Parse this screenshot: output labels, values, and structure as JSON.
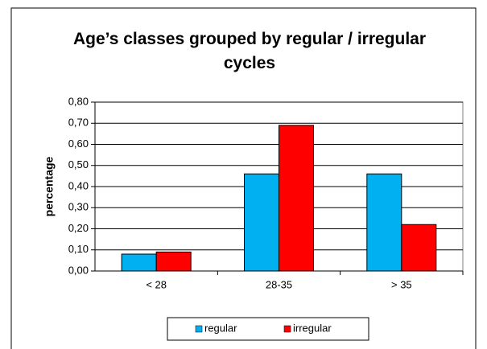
{
  "chart_data": {
    "type": "bar",
    "title": "Age’s classes grouped by regular / irregular cycles",
    "ylabel": "percentage",
    "categories": [
      "< 28",
      "28-35",
      "> 35"
    ],
    "series": [
      {
        "name": "regular",
        "color": "#00b0f0",
        "values": [
          0.08,
          0.46,
          0.46
        ]
      },
      {
        "name": "irregular",
        "color": "#ff0000",
        "values": [
          0.09,
          0.69,
          0.22
        ]
      }
    ],
    "ylim": [
      0,
      0.8
    ],
    "yticks": [
      {
        "value": 0,
        "label": "0,00"
      },
      {
        "value": 0.1,
        "label": "0,10"
      },
      {
        "value": 0.2,
        "label": "0,20"
      },
      {
        "value": 0.3,
        "label": "0,30"
      },
      {
        "value": 0.4,
        "label": "0,40"
      },
      {
        "value": 0.5,
        "label": "0,50"
      },
      {
        "value": 0.6,
        "label": "0,60"
      },
      {
        "value": 0.7,
        "label": "0,70"
      },
      {
        "value": 0.8,
        "label": "0,80"
      }
    ],
    "grid": true,
    "legend": "bottom"
  }
}
